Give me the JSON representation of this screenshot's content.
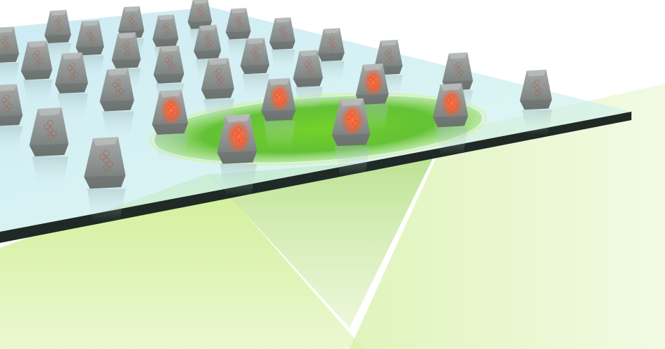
{
  "colors": {
    "background": "#ffffff",
    "glass_fill": "#bfe6ef",
    "glass_edge": "#1f2a26",
    "beam_light": "#d9f2a8",
    "beam_mid": "#a6dd55",
    "spot_fill": "#5cbf1a",
    "particle_fill": "#8f9593",
    "emission_glow": "#ff6a3c",
    "molecule_stroke": "#ff5a2a"
  },
  "particles": {
    "count": 30,
    "excited_count": 6
  }
}
